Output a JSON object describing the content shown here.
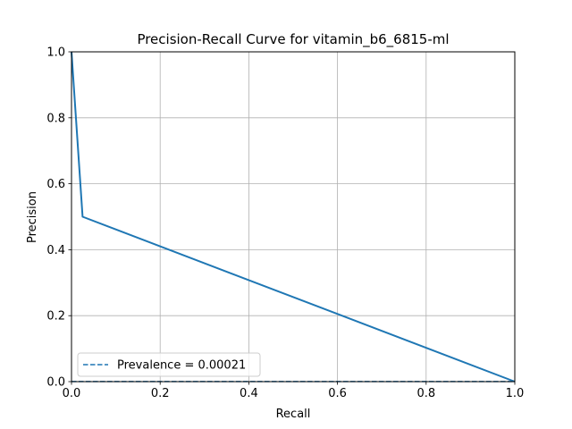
{
  "chart_data": {
    "type": "line",
    "title": "Precision-Recall Curve for vitamin_b6_6815-ml",
    "xlabel": "Recall",
    "ylabel": "Precision",
    "xlim": [
      0.0,
      1.0
    ],
    "ylim": [
      0.0,
      1.0
    ],
    "xticks": [
      0.0,
      0.2,
      0.4,
      0.6,
      0.8,
      1.0
    ],
    "yticks": [
      0.0,
      0.2,
      0.4,
      0.6,
      0.8,
      1.0
    ],
    "xtick_labels": [
      "0.0",
      "0.2",
      "0.4",
      "0.6",
      "0.8",
      "1.0"
    ],
    "ytick_labels": [
      "0.0",
      "0.2",
      "0.4",
      "0.6",
      "0.8",
      "1.0"
    ],
    "grid": true,
    "legend_position": "lower-left",
    "series": [
      {
        "style": "solid",
        "color": "#1f77b4",
        "x": [
          0.0,
          0.025,
          1.0
        ],
        "y": [
          1.0,
          0.5,
          0.0
        ]
      },
      {
        "name": "Prevalence = 0.00021",
        "style": "dashed",
        "color": "#1f77b4",
        "x": [
          0.0,
          1.0
        ],
        "y": [
          0.00021,
          0.00021
        ]
      }
    ]
  }
}
